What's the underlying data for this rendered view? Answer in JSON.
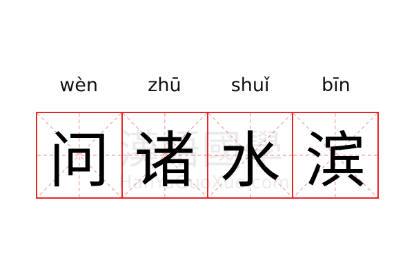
{
  "word": [
    {
      "pinyin": "wèn",
      "hanzi": "问"
    },
    {
      "pinyin": "zhū",
      "hanzi": "诸"
    },
    {
      "pinyin": "shuǐ",
      "hanzi": "水"
    },
    {
      "pinyin": "bīn",
      "hanzi": "滨"
    }
  ],
  "watermark": {
    "chinese": "漢語國學",
    "latin": "HanYuGuoXue.com"
  },
  "colors": {
    "grid": "#e8262a",
    "guide": "#f4a0a0"
  }
}
